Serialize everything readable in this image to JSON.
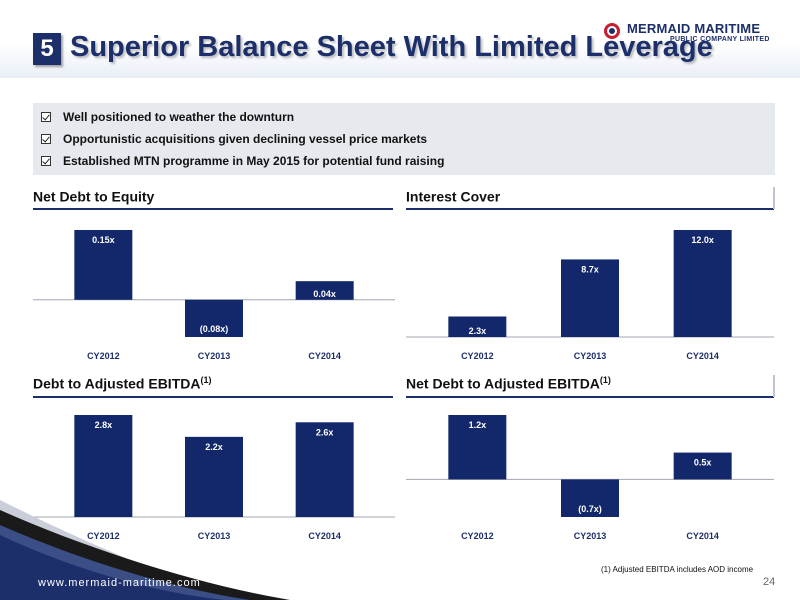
{
  "slide": {
    "number": "5",
    "title": "Superior Balance Sheet With Limited Leverage",
    "company": "MERMAID MARITIME",
    "company_sub": "PUBLIC COMPANY LIMITED",
    "website": "www.mermaid-maritime.com",
    "page": "24",
    "footnote": "(1) Adjusted EBITDA includes AOD income",
    "bullets": [
      "Well positioned to weather the downturn",
      "Opportunistic acquisitions given declining vessel price markets",
      "Established MTN programme in May 2015 for potential fund raising"
    ],
    "colors": {
      "navy": "#1d2f6b",
      "bar": "#13286b",
      "box": "#e6e9ee"
    }
  },
  "chart_data": [
    {
      "type": "bar",
      "title": "Net Debt to Equity",
      "title_sup": "",
      "categories": [
        "CY2012",
        "CY2013",
        "CY2014"
      ],
      "values": [
        0.15,
        -0.08,
        0.04
      ],
      "labels": [
        "0.15x",
        "(0.08x)",
        "0.04x"
      ],
      "ylim": [
        -0.08,
        0.15
      ]
    },
    {
      "type": "bar",
      "title": "Interest Cover",
      "title_sup": "",
      "categories": [
        "CY2012",
        "CY2013",
        "CY2014"
      ],
      "values": [
        2.3,
        8.7,
        12.0
      ],
      "labels": [
        "2.3x",
        "8.7x",
        "12.0x"
      ],
      "ylim": [
        0,
        12.0
      ]
    },
    {
      "type": "bar",
      "title": "Debt to Adjusted EBITDA",
      "title_sup": "(1)",
      "categories": [
        "CY2012",
        "CY2013",
        "CY2014"
      ],
      "values": [
        2.8,
        2.2,
        2.6
      ],
      "labels": [
        "2.8x",
        "2.2x",
        "2.6x"
      ],
      "ylim": [
        0,
        2.8
      ]
    },
    {
      "type": "bar",
      "title": "Net Debt to Adjusted EBITDA",
      "title_sup": "(1)",
      "categories": [
        "CY2012",
        "CY2013",
        "CY2014"
      ],
      "values": [
        1.2,
        -0.7,
        0.5
      ],
      "labels": [
        "1.2x",
        "(0.7x)",
        "0.5x"
      ],
      "ylim": [
        -0.7,
        1.2
      ]
    }
  ]
}
